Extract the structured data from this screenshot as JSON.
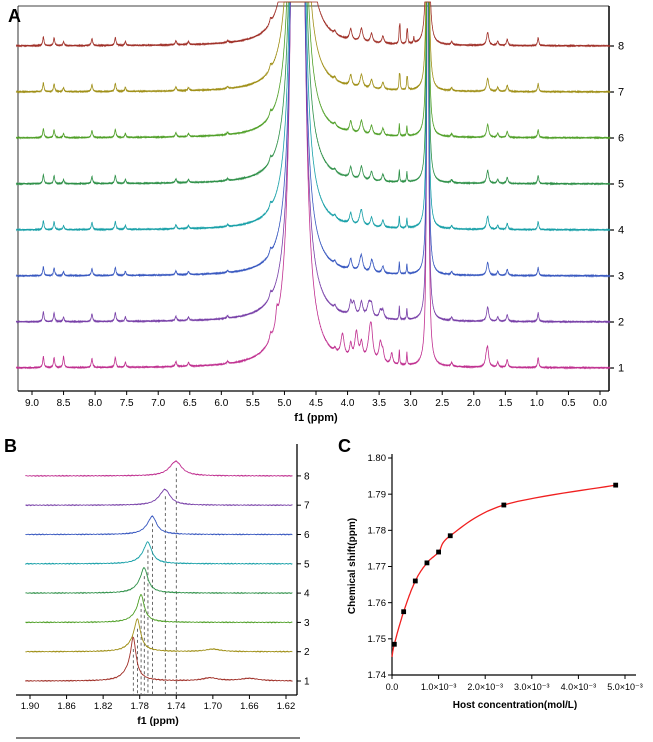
{
  "figure": {
    "background": "#ffffff",
    "panels": [
      {
        "label": "A"
      },
      {
        "label": "B"
      },
      {
        "label": "C"
      }
    ]
  },
  "chart_data": [
    {
      "id": "panel-a",
      "type": "line",
      "subtype": "nmr-stacked-spectra",
      "title": "",
      "xlabel": "f1 (ppm)",
      "x_axis_reversed": true,
      "x_tick_values": [
        9.0,
        8.5,
        8.0,
        7.5,
        7.0,
        6.5,
        6.0,
        5.5,
        5.0,
        4.5,
        4.0,
        3.5,
        3.0,
        2.5,
        2.0,
        1.5,
        1.0,
        0.5,
        0.0
      ],
      "x_tick_labels": [
        "9.0",
        "8.5",
        "8.0",
        "7.5",
        "7.0",
        "6.5",
        "6.0",
        "5.5",
        "5.0",
        "4.5",
        "4.0",
        "3.5",
        "3.0",
        "2.5",
        "2.0",
        "1.5",
        "1.0",
        "0.5",
        "0.0"
      ],
      "right_axis_trace_labels": [
        "1",
        "2",
        "3",
        "4",
        "5",
        "6",
        "7",
        "8"
      ],
      "common_peaks": [
        [
          8.82,
          9,
          0.012
        ],
        [
          8.65,
          8,
          0.012
        ],
        [
          8.5,
          4,
          0.012
        ],
        [
          8.05,
          7,
          0.013
        ],
        [
          7.68,
          8,
          0.013
        ],
        [
          7.52,
          4,
          0.012
        ],
        [
          6.72,
          4,
          0.014
        ],
        [
          6.52,
          3,
          0.014
        ],
        [
          5.9,
          2,
          0.015
        ],
        [
          5.22,
          5,
          0.018
        ],
        [
          4.79,
          3000,
          0.038
        ],
        [
          4.2,
          3,
          0.02
        ],
        [
          3.95,
          11,
          0.022
        ],
        [
          3.78,
          13,
          0.026
        ],
        [
          3.62,
          9,
          0.022
        ],
        [
          3.44,
          7,
          0.02
        ],
        [
          3.18,
          12,
          0.007
        ],
        [
          3.06,
          10,
          0.007
        ],
        [
          2.73,
          520,
          0.014
        ],
        [
          2.35,
          3,
          0.015
        ],
        [
          1.78,
          13,
          0.02
        ],
        [
          1.62,
          4,
          0.015
        ],
        [
          1.47,
          6,
          0.015
        ],
        [
          0.98,
          8,
          0.012
        ]
      ],
      "traces": [
        {
          "num": 1,
          "color": "#C03090",
          "scale": 1.25,
          "extra_peaks": [
            [
              8.5,
              5,
              0.012
            ],
            [
              5.12,
              11,
              0.02
            ],
            [
              4.08,
              18,
              0.032
            ],
            [
              3.86,
              22,
              0.03
            ],
            [
              3.64,
              26,
              0.04
            ],
            [
              3.48,
              16,
              0.028
            ],
            [
              3.3,
              9,
              0.02
            ],
            [
              1.8,
              7,
              0.02
            ]
          ]
        },
        {
          "num": 2,
          "color": "#7840A8",
          "scale": 1.1,
          "extra_peaks": [
            [
              3.9,
              11,
              0.028
            ],
            [
              3.66,
              13,
              0.034
            ],
            [
              3.48,
              7,
              0.024
            ]
          ]
        },
        {
          "num": 3,
          "color": "#3858C0",
          "scale": 1.0,
          "extra_peaks": [
            [
              3.8,
              5,
              0.03
            ],
            [
              3.6,
              5,
              0.028
            ]
          ]
        },
        {
          "num": 4,
          "color": "#18A0A8",
          "scale": 1.0,
          "extra_peaks": [
            [
              3.8,
              4,
              0.03
            ]
          ]
        },
        {
          "num": 5,
          "color": "#2E9048",
          "scale": 1.0,
          "extra_peaks": []
        },
        {
          "num": 6,
          "color": "#50A028",
          "scale": 1.0,
          "extra_peaks": []
        },
        {
          "num": 7,
          "color": "#A09018",
          "scale": 1.0,
          "extra_peaks": [
            [
              3.17,
              12,
              0.007
            ],
            [
              3.05,
              9,
              0.007
            ]
          ]
        },
        {
          "num": 8,
          "color": "#A03028",
          "scale": 1.0,
          "extra_peaks": [
            [
              3.17,
              16,
              0.007
            ],
            [
              3.05,
              11,
              0.007
            ],
            [
              2.95,
              6,
              0.007
            ]
          ]
        }
      ]
    },
    {
      "id": "panel-b",
      "type": "line",
      "subtype": "nmr-zoom-stacked-spectra",
      "title": "",
      "xlabel": "f1 (ppm)",
      "x_axis_reversed": true,
      "x_tick_values": [
        1.9,
        1.86,
        1.82,
        1.78,
        1.74,
        1.7,
        1.66,
        1.62
      ],
      "x_tick_labels": [
        "1.90",
        "1.86",
        "1.82",
        "1.78",
        "1.74",
        "1.70",
        "1.66",
        "1.62"
      ],
      "right_axis_trace_labels": [
        "1",
        "2",
        "3",
        "4",
        "5",
        "6",
        "7",
        "8"
      ],
      "guide_lines_at_peaks": true,
      "guide_line_color": "#444444",
      "traces": [
        {
          "num": 1,
          "color": "#A03028",
          "peak_ppm": 1.787,
          "peak_height": 36,
          "peak_width": 0.0035,
          "extra_peaks": [
            [
              1.703,
              3,
              0.01
            ],
            [
              1.66,
              2.5,
              0.012
            ]
          ]
        },
        {
          "num": 2,
          "color": "#A09018",
          "peak_ppm": 1.7825,
          "peak_height": 27,
          "peak_width": 0.004,
          "extra_peaks": [
            [
              1.7,
              2.5,
              0.01
            ]
          ]
        },
        {
          "num": 3,
          "color": "#50A028",
          "peak_ppm": 1.7785,
          "peak_height": 23,
          "peak_width": 0.004,
          "extra_peaks": []
        },
        {
          "num": 4,
          "color": "#2E9048",
          "peak_ppm": 1.775,
          "peak_height": 21,
          "peak_width": 0.0045,
          "extra_peaks": []
        },
        {
          "num": 5,
          "color": "#18A0A8",
          "peak_ppm": 1.771,
          "peak_height": 18,
          "peak_width": 0.005,
          "extra_peaks": []
        },
        {
          "num": 6,
          "color": "#3858C0",
          "peak_ppm": 1.766,
          "peak_height": 15,
          "peak_width": 0.0055,
          "extra_peaks": []
        },
        {
          "num": 7,
          "color": "#7840A8",
          "peak_ppm": 1.752,
          "peak_height": 13,
          "peak_width": 0.0065,
          "extra_peaks": []
        },
        {
          "num": 8,
          "color": "#C03090",
          "peak_ppm": 1.74,
          "peak_height": 12,
          "peak_width": 0.0075,
          "extra_peaks": []
        }
      ]
    },
    {
      "id": "panel-c",
      "type": "scatter",
      "subtype": "binding-isotherm",
      "title": "",
      "xlabel": "Host concentration(mol/L)",
      "ylabel": "Chemical shift(ppm)",
      "xlim": [
        0,
        0.0053
      ],
      "ylim": [
        1.74,
        1.8
      ],
      "x_tick_values": [
        0,
        0.001,
        0.002,
        0.003,
        0.004,
        0.005
      ],
      "x_tick_labels": [
        "0.0",
        "1.0×10⁻³",
        "2.0×10⁻³",
        "3.0×10⁻³",
        "4.0×10⁻³",
        "5.0×10⁻³"
      ],
      "y_tick_values": [
        1.74,
        1.75,
        1.76,
        1.77,
        1.78,
        1.79,
        1.8
      ],
      "y_tick_labels": [
        "1.74",
        "1.75",
        "1.76",
        "1.77",
        "1.78",
        "1.79",
        "1.80"
      ],
      "points": [
        [
          5e-05,
          1.7485
        ],
        [
          0.00025,
          1.7575
        ],
        [
          0.0005,
          1.766
        ],
        [
          0.00075,
          1.771
        ],
        [
          0.001,
          1.774
        ],
        [
          0.00125,
          1.7785
        ],
        [
          0.0024,
          1.787
        ],
        [
          0.0048,
          1.7925
        ]
      ],
      "curve_start": [
        0,
        1.745
      ],
      "curve_color": "#F02020",
      "marker_color": "#000000",
      "marker": "square"
    }
  ]
}
